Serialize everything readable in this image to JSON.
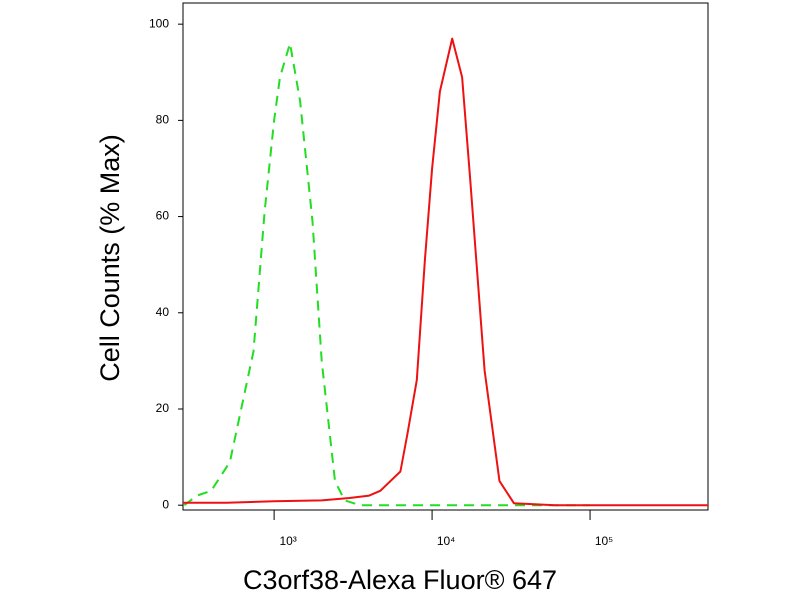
{
  "chart_data": {
    "type": "line",
    "x_label": "C3orf38-Alexa Fluor® 647",
    "y_label": "Cell Counts (% Max)",
    "xscale": "log",
    "xlim": [
      265,
      558000
    ],
    "xticks": [
      {
        "value": 1000,
        "label": "10³"
      },
      {
        "value": 10000,
        "label": "10⁴"
      },
      {
        "value": 100000,
        "label": "10⁵"
      }
    ],
    "ylim": [
      -1,
      104.4
    ],
    "yticks": [
      0,
      20,
      40,
      60,
      80,
      100
    ],
    "series": [
      {
        "color": "#22dd22",
        "dash": true,
        "x": [
          270,
          325,
          400,
          525,
          740,
          870,
          1000,
          1090,
          1260,
          1460,
          1750,
          2000,
          2430,
          2800,
          3500,
          6000,
          20000,
          100000
        ],
        "values": [
          0,
          2,
          3,
          9,
          32,
          61,
          80,
          89,
          96,
          84,
          59,
          30,
          5,
          1,
          0,
          0,
          0,
          0
        ]
      },
      {
        "color": "#ee1111",
        "dash": false,
        "x": [
          265,
          500,
          1000,
          2000,
          3000,
          4000,
          4700,
          6300,
          7000,
          8000,
          9000,
          10000,
          11200,
          13400,
          15500,
          17400,
          21500,
          26700,
          33000,
          60000,
          200000,
          558000
        ],
        "values": [
          0.5,
          0.5,
          0.8,
          1,
          1.5,
          2,
          3,
          7,
          15,
          26,
          51,
          70,
          86,
          97,
          89,
          68,
          28,
          5,
          0.4,
          0,
          0,
          0
        ]
      }
    ]
  }
}
